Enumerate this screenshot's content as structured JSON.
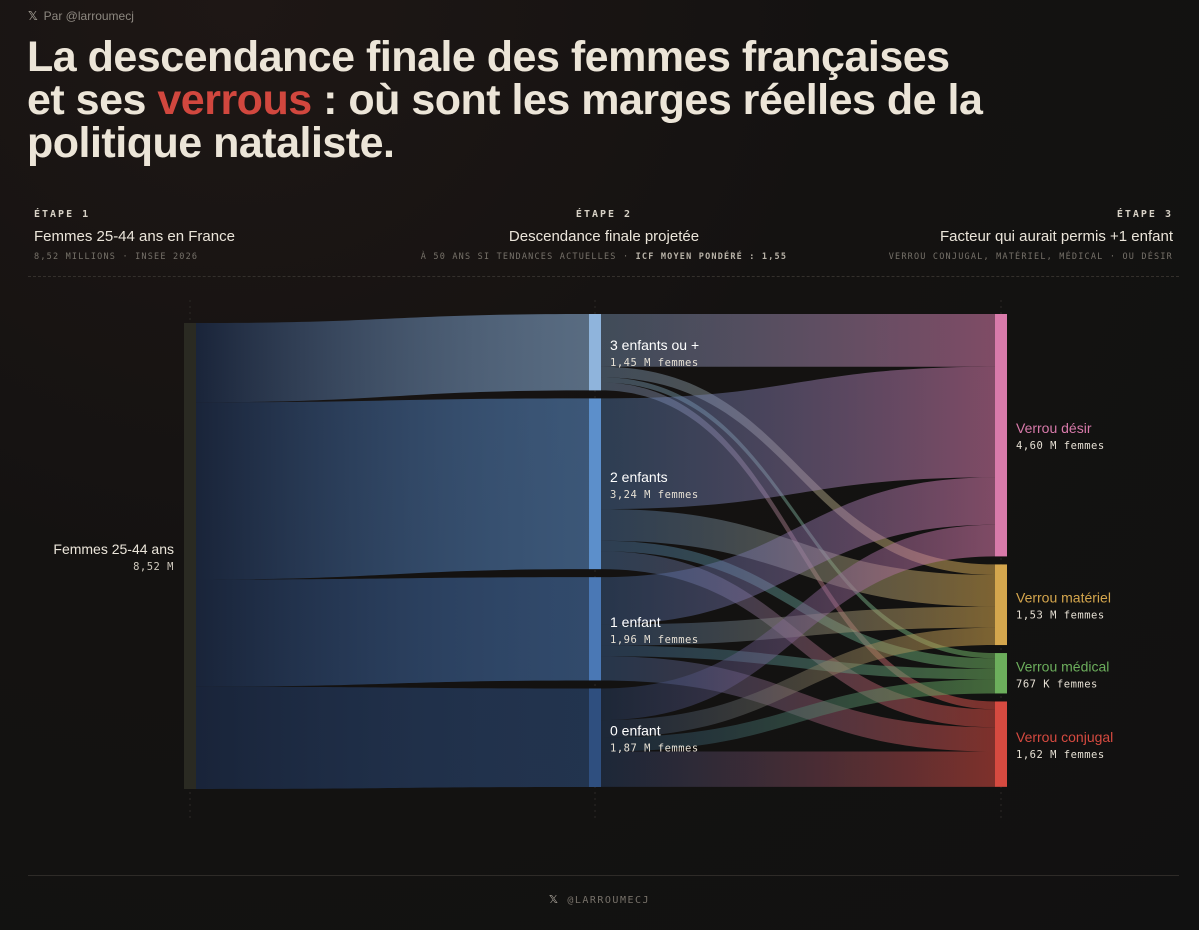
{
  "byline": {
    "icon": "x-logo-icon",
    "text": "Par @larroumecj"
  },
  "title": {
    "before": "La descendance finale des femmes françaises et ses ",
    "accent": "verrous",
    "after": " : où sont les marges réelles de la politique nataliste.",
    "accent_color": "#d1473e"
  },
  "stages": [
    {
      "tag": "ÉTAPE 1",
      "name": "Femmes 25-44 ans en France",
      "sub": "8,52 MILLIONS · INSEE 2026",
      "sub_bold": ""
    },
    {
      "tag": "ÉTAPE 2",
      "name": "Descendance finale projetée",
      "sub": "À 50 ANS SI TENDANCES ACTUELLES · ",
      "sub_bold": "ICF MOYEN PONDÉRÉ : 1,55"
    },
    {
      "tag": "ÉTAPE 3",
      "name": "Facteur qui aurait permis +1 enfant",
      "sub": "VERROU CONJUGAL, MATÉRIEL, MÉDICAL · OU DÉSIR",
      "sub_bold": ""
    }
  ],
  "footer": {
    "icon": "x-logo-icon",
    "text": "@LARROUMECJ"
  },
  "chart_data": {
    "type": "sankey",
    "nodes": [
      {
        "id": "total",
        "column": 1,
        "label": "Femmes 25-44 ans",
        "value_label": "8,52 M",
        "value": 8.52,
        "color": "#2a2a22",
        "label_color": "#ebe5da"
      },
      {
        "id": "c3",
        "column": 2,
        "label": "3 enfants ou +",
        "value_label": "1,45 M femmes",
        "value": 1.45,
        "color": "#8fb4dc",
        "label_color": "#ffffff"
      },
      {
        "id": "c2",
        "column": 2,
        "label": "2 enfants",
        "value_label": "3,24 M femmes",
        "value": 3.24,
        "color": "#5c8fcb",
        "label_color": "#ffffff"
      },
      {
        "id": "c1",
        "column": 2,
        "label": "1 enfant",
        "value_label": "1,96 M femmes",
        "value": 1.96,
        "color": "#4a78b5",
        "label_color": "#ffffff"
      },
      {
        "id": "c0",
        "column": 2,
        "label": "0 enfant",
        "value_label": "1,87 M femmes",
        "value": 1.87,
        "color": "#2f4f7f",
        "label_color": "#ffffff"
      },
      {
        "id": "desir",
        "column": 3,
        "label": "Verrou désir",
        "value_label": "4,60 M femmes",
        "value": 4.6,
        "color": "#d87aaa",
        "label_color": "#d87aaa"
      },
      {
        "id": "materiel",
        "column": 3,
        "label": "Verrou matériel",
        "value_label": "1,53 M femmes",
        "value": 1.53,
        "color": "#d4a64d",
        "label_color": "#d4a64d"
      },
      {
        "id": "medical",
        "column": 3,
        "label": "Verrou médical",
        "value_label": "767 K femmes",
        "value": 0.767,
        "color": "#6cae5c",
        "label_color": "#6cae5c"
      },
      {
        "id": "conjugal",
        "column": 3,
        "label": "Verrou conjugal",
        "value_label": "1,62 M femmes",
        "value": 1.62,
        "color": "#d64a40",
        "label_color": "#d64a40"
      }
    ],
    "links": [
      {
        "source": "total",
        "target": "c3",
        "value": 1.45
      },
      {
        "source": "total",
        "target": "c2",
        "value": 3.24
      },
      {
        "source": "total",
        "target": "c1",
        "value": 1.96
      },
      {
        "source": "total",
        "target": "c0",
        "value": 1.87
      },
      {
        "source": "c3",
        "target": "desir",
        "value": 1.0
      },
      {
        "source": "c3",
        "target": "materiel",
        "value": 0.2
      },
      {
        "source": "c3",
        "target": "medical",
        "value": 0.1
      },
      {
        "source": "c3",
        "target": "conjugal",
        "value": 0.15
      },
      {
        "source": "c2",
        "target": "desir",
        "value": 2.1
      },
      {
        "source": "c2",
        "target": "materiel",
        "value": 0.6
      },
      {
        "source": "c2",
        "target": "medical",
        "value": 0.2
      },
      {
        "source": "c2",
        "target": "conjugal",
        "value": 0.34
      },
      {
        "source": "c1",
        "target": "desir",
        "value": 0.9
      },
      {
        "source": "c1",
        "target": "materiel",
        "value": 0.4
      },
      {
        "source": "c1",
        "target": "medical",
        "value": 0.2
      },
      {
        "source": "c1",
        "target": "conjugal",
        "value": 0.46
      },
      {
        "source": "c0",
        "target": "desir",
        "value": 0.6
      },
      {
        "source": "c0",
        "target": "materiel",
        "value": 0.33
      },
      {
        "source": "c0",
        "target": "medical",
        "value": 0.267
      },
      {
        "source": "c0",
        "target": "conjugal",
        "value": 0.67
      }
    ]
  }
}
